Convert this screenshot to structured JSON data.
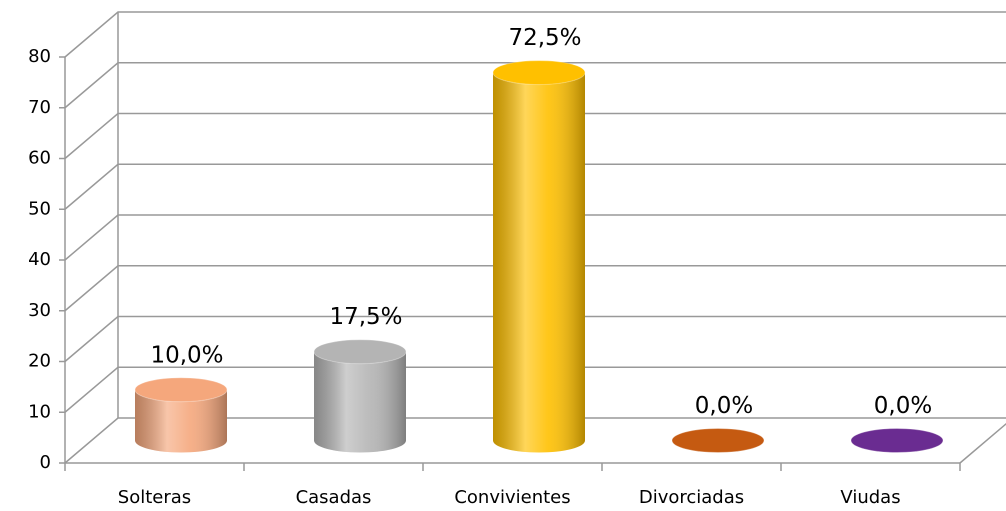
{
  "chart_data": {
    "type": "bar3d",
    "categories": [
      "Solteras",
      "Casadas",
      "Convivientes",
      "Divorciadas",
      "Viudas"
    ],
    "values": [
      10,
      17.5,
      72.5,
      0,
      0
    ],
    "value_labels": [
      "10,0%",
      "17,5%",
      "72,5%",
      "0,0%",
      "0,0%"
    ],
    "colors": [
      "#f5a77c",
      "#b4b4b4",
      "#ffc000",
      "#c55a11",
      "#6a2c91"
    ],
    "ylim": [
      0,
      80
    ],
    "yticks": [
      0,
      10,
      20,
      30,
      40,
      50,
      60,
      70,
      80
    ],
    "grid": true
  }
}
